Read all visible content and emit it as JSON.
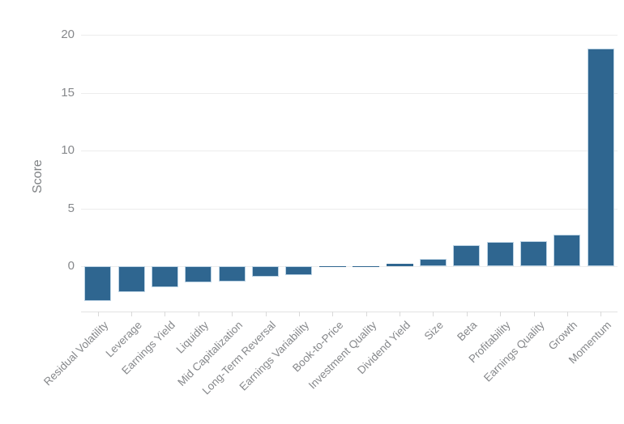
{
  "chart_data": {
    "type": "bar",
    "categories": [
      "Residual Volatility",
      "Leverage",
      "Earnings Yield",
      "Liquidity",
      "Mid Capitalization",
      "Long-Term Reversal",
      "Earnings Variability",
      "Book-to-Price",
      "Investment Quality",
      "Dividend Yield",
      "Size",
      "Beta",
      "Profitability",
      "Earnings Quality",
      "Growth",
      "Momentum"
    ],
    "values": [
      -3.0,
      -2.2,
      -1.8,
      -1.4,
      -1.3,
      -0.9,
      -0.8,
      -0.05,
      -0.1,
      0.2,
      0.6,
      1.8,
      2.1,
      2.2,
      2.7,
      18.8
    ],
    "ylabel": "Score",
    "xlabel": "",
    "yticks": [
      0,
      5,
      10,
      15,
      20
    ],
    "ylim": [
      -4,
      21
    ],
    "grid": "horizontal",
    "legend": "none",
    "colors": {
      "bar_fill": "#2f6690",
      "bar_edge": "#bcd3e4",
      "gridline": "#ececec",
      "axis_line": "#e2e2e2",
      "tick_mark": "#d9d9d9",
      "tick_text": "#86888b",
      "axis_label_text": "#7f8285"
    }
  }
}
